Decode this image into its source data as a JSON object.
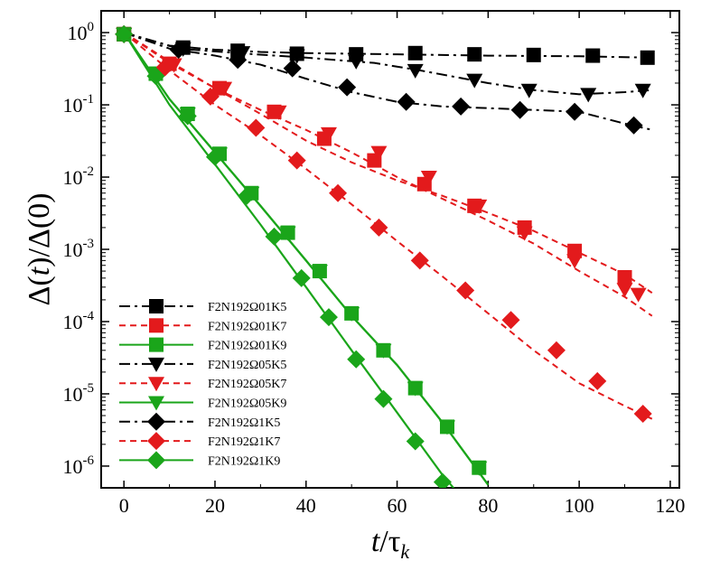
{
  "chart_data": {
    "type": "line",
    "title": "",
    "xlabel": "t/τ_k",
    "xlabel_parts": {
      "var": "t",
      "slash": "/",
      "tau": "τ",
      "sub": "k"
    },
    "ylabel": "Δ(t)/Δ(0)",
    "ylabel_parts": {
      "a": "Δ(",
      "var": "t",
      "b": ")/Δ(0)"
    },
    "yscale": "log",
    "xlim": [
      -5,
      122
    ],
    "ylim": [
      5e-07,
      2
    ],
    "xticks": [
      0,
      20,
      40,
      60,
      80,
      100,
      120
    ],
    "xtick_labels": [
      "0",
      "20",
      "40",
      "60",
      "80",
      "100",
      "120"
    ],
    "yticks": [
      1e-06,
      1e-05,
      0.0001,
      0.001,
      0.01,
      0.1,
      1
    ],
    "ytick_labels": [
      {
        "base": "10",
        "exp": "-6"
      },
      {
        "base": "10",
        "exp": "-5"
      },
      {
        "base": "10",
        "exp": "-4"
      },
      {
        "base": "10",
        "exp": "-3"
      },
      {
        "base": "10",
        "exp": "-2"
      },
      {
        "base": "10",
        "exp": "-1"
      },
      {
        "base": "10",
        "exp": "0"
      }
    ],
    "grid": false,
    "legend_position": "bottom-left",
    "series": [
      {
        "name": "F2N192Ω01K5",
        "color": "#000000",
        "dash": "dashdot",
        "marker": "square",
        "line": [
          [
            0,
            1
          ],
          [
            10,
            0.66
          ],
          [
            20,
            0.58
          ],
          [
            30,
            0.54
          ],
          [
            40,
            0.52
          ],
          [
            60,
            0.5
          ],
          [
            80,
            0.48
          ],
          [
            100,
            0.47
          ],
          [
            116,
            0.45
          ]
        ],
        "markers": [
          [
            0,
            0.95
          ],
          [
            13,
            0.62
          ],
          [
            25,
            0.56
          ],
          [
            38,
            0.51
          ],
          [
            51,
            0.5
          ],
          [
            64,
            0.52
          ],
          [
            77,
            0.5
          ],
          [
            90,
            0.49
          ],
          [
            103,
            0.48
          ],
          [
            115,
            0.45
          ]
        ]
      },
      {
        "name": "F2N192Ω01K7",
        "color": "#e31a1c",
        "dash": "dashed",
        "marker": "square",
        "line": [
          [
            0,
            1
          ],
          [
            10,
            0.4
          ],
          [
            20,
            0.17
          ],
          [
            30,
            0.075
          ],
          [
            40,
            0.032
          ],
          [
            50,
            0.016
          ],
          [
            60,
            0.009
          ],
          [
            70,
            0.0055
          ],
          [
            80,
            0.0032
          ],
          [
            90,
            0.0018
          ],
          [
            100,
            0.0009
          ],
          [
            110,
            0.00045
          ],
          [
            116,
            0.00025
          ]
        ],
        "markers": [
          [
            0,
            0.95
          ],
          [
            10,
            0.37
          ],
          [
            21,
            0.17
          ],
          [
            33,
            0.08
          ],
          [
            44,
            0.034
          ],
          [
            55,
            0.017
          ],
          [
            66,
            0.008
          ],
          [
            77,
            0.004
          ],
          [
            88,
            0.002
          ],
          [
            99,
            0.00095
          ],
          [
            110,
            0.00041
          ]
        ]
      },
      {
        "name": "F2N192Ω01K9",
        "color": "#1aa51a",
        "dash": "solid",
        "marker": "square",
        "line": [
          [
            0,
            1
          ],
          [
            10,
            0.12
          ],
          [
            20,
            0.022
          ],
          [
            30,
            0.004
          ],
          [
            40,
            0.0007
          ],
          [
            50,
            0.00012
          ],
          [
            60,
            2.5e-05
          ],
          [
            70,
            4e-06
          ],
          [
            80,
            5.5e-07
          ]
        ],
        "markers": [
          [
            0,
            0.95
          ],
          [
            7,
            0.27
          ],
          [
            14,
            0.075
          ],
          [
            21,
            0.021
          ],
          [
            28,
            0.006
          ],
          [
            36,
            0.0017
          ],
          [
            43,
            0.0005
          ],
          [
            50,
            0.00013
          ],
          [
            57,
            4e-05
          ],
          [
            64,
            1.2e-05
          ],
          [
            71,
            3.5e-06
          ],
          [
            78,
            9.5e-07
          ]
        ]
      },
      {
        "name": "F2N192Ω05K5",
        "color": "#000000",
        "dash": "dashdot",
        "marker": "triangle-down",
        "line": [
          [
            0,
            1
          ],
          [
            12,
            0.6
          ],
          [
            25,
            0.52
          ],
          [
            40,
            0.45
          ],
          [
            55,
            0.38
          ],
          [
            65,
            0.3
          ],
          [
            80,
            0.2
          ],
          [
            90,
            0.16
          ],
          [
            100,
            0.14
          ],
          [
            110,
            0.15
          ],
          [
            116,
            0.16
          ]
        ],
        "markers": [
          [
            0,
            0.95
          ],
          [
            13,
            0.6
          ],
          [
            26,
            0.53
          ],
          [
            38,
            0.48
          ],
          [
            51,
            0.4
          ],
          [
            64,
            0.3
          ],
          [
            77,
            0.22
          ],
          [
            89,
            0.16
          ],
          [
            102,
            0.14
          ],
          [
            114,
            0.16
          ]
        ]
      },
      {
        "name": "F2N192Ω05K7",
        "color": "#e31a1c",
        "dash": "dashed",
        "marker": "triangle-down",
        "line": [
          [
            0,
            1
          ],
          [
            10,
            0.38
          ],
          [
            20,
            0.17
          ],
          [
            30,
            0.085
          ],
          [
            40,
            0.045
          ],
          [
            50,
            0.022
          ],
          [
            60,
            0.01
          ],
          [
            70,
            0.005
          ],
          [
            80,
            0.0025
          ],
          [
            90,
            0.0012
          ],
          [
            100,
            0.0005
          ],
          [
            110,
            0.00022
          ],
          [
            116,
            0.00012
          ]
        ],
        "markers": [
          [
            0,
            0.95
          ],
          [
            11,
            0.36
          ],
          [
            22,
            0.17
          ],
          [
            34,
            0.08
          ],
          [
            45,
            0.04
          ],
          [
            56,
            0.022
          ],
          [
            67,
            0.01
          ],
          [
            78,
            0.004
          ],
          [
            88,
            0.0017
          ],
          [
            99,
            0.0007
          ],
          [
            110,
            0.00028
          ],
          [
            113,
            0.00024
          ]
        ]
      },
      {
        "name": "F2N192Ω05K9",
        "color": "#1aa51a",
        "dash": "solid",
        "marker": "triangle-down",
        "line": [
          [
            0,
            1
          ],
          [
            10,
            0.12
          ],
          [
            20,
            0.022
          ],
          [
            30,
            0.004
          ],
          [
            40,
            0.0007
          ],
          [
            50,
            0.00012
          ],
          [
            60,
            2.5e-05
          ],
          [
            70,
            4e-06
          ],
          [
            80,
            5.5e-07
          ]
        ],
        "markers": [
          [
            0,
            0.95
          ],
          [
            7,
            0.27
          ],
          [
            14,
            0.075
          ],
          [
            21,
            0.021
          ],
          [
            28,
            0.006
          ],
          [
            36,
            0.0017
          ],
          [
            43,
            0.0005
          ],
          [
            50,
            0.00013
          ],
          [
            57,
            4e-05
          ],
          [
            64,
            1.2e-05
          ],
          [
            71,
            3.5e-06
          ],
          [
            78,
            9.5e-07
          ]
        ]
      },
      {
        "name": "F2N192Ω1K5",
        "color": "#000000",
        "dash": "dashdot",
        "marker": "diamond",
        "line": [
          [
            0,
            1
          ],
          [
            10,
            0.6
          ],
          [
            20,
            0.48
          ],
          [
            30,
            0.36
          ],
          [
            40,
            0.23
          ],
          [
            50,
            0.15
          ],
          [
            60,
            0.11
          ],
          [
            70,
            0.095
          ],
          [
            80,
            0.09
          ],
          [
            90,
            0.085
          ],
          [
            100,
            0.08
          ],
          [
            110,
            0.055
          ],
          [
            116,
            0.045
          ]
        ],
        "markers": [
          [
            0,
            0.95
          ],
          [
            12,
            0.58
          ],
          [
            25,
            0.42
          ],
          [
            37,
            0.32
          ],
          [
            49,
            0.175
          ],
          [
            62,
            0.11
          ],
          [
            74,
            0.095
          ],
          [
            87,
            0.085
          ],
          [
            99,
            0.08
          ],
          [
            112,
            0.052
          ]
        ]
      },
      {
        "name": "F2N192Ω1K7",
        "color": "#e31a1c",
        "dash": "dashed",
        "marker": "diamond",
        "line": [
          [
            0,
            1
          ],
          [
            10,
            0.3
          ],
          [
            20,
            0.1
          ],
          [
            30,
            0.038
          ],
          [
            40,
            0.013
          ],
          [
            50,
            0.0042
          ],
          [
            60,
            0.0013
          ],
          [
            70,
            0.00042
          ],
          [
            80,
            0.00013
          ],
          [
            90,
            4e-05
          ],
          [
            100,
            1.4e-05
          ],
          [
            110,
            6.8e-06
          ],
          [
            116,
            4.5e-06
          ]
        ],
        "markers": [
          [
            0,
            0.95
          ],
          [
            9,
            0.33
          ],
          [
            19,
            0.13
          ],
          [
            29,
            0.048
          ],
          [
            38,
            0.017
          ],
          [
            47,
            0.006
          ],
          [
            56,
            0.002
          ],
          [
            65,
            0.0007
          ],
          [
            75,
            0.00027
          ],
          [
            85,
            0.000105
          ],
          [
            95,
            4e-05
          ],
          [
            104,
            1.5e-05
          ],
          [
            114,
            5.3e-06
          ]
        ]
      },
      {
        "name": "F2N192Ω1K9",
        "color": "#1aa51a",
        "dash": "solid",
        "marker": "diamond",
        "line": [
          [
            0,
            1
          ],
          [
            10,
            0.1
          ],
          [
            20,
            0.015
          ],
          [
            30,
            0.0022
          ],
          [
            40,
            0.0003
          ],
          [
            50,
            4e-05
          ],
          [
            60,
            5.5e-06
          ],
          [
            70,
            7.5e-07
          ],
          [
            73,
            4.5e-07
          ]
        ],
        "markers": [
          [
            0,
            0.95
          ],
          [
            7,
            0.25
          ],
          [
            14,
            0.07
          ],
          [
            20,
            0.019
          ],
          [
            27,
            0.0055
          ],
          [
            33,
            0.0015
          ],
          [
            39,
            0.0004
          ],
          [
            45,
            0.000115
          ],
          [
            51,
            3e-05
          ],
          [
            57,
            8.5e-06
          ],
          [
            64,
            2.2e-06
          ],
          [
            70,
            6e-07
          ]
        ]
      }
    ]
  }
}
